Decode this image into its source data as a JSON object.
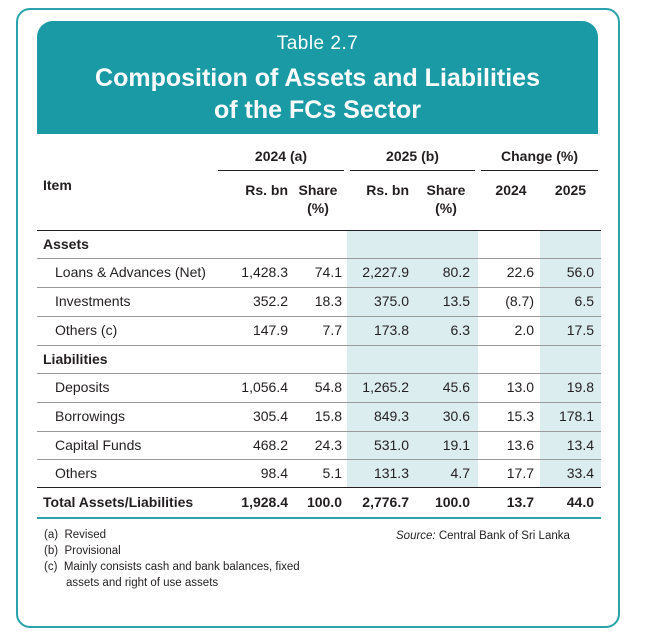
{
  "table": {
    "number": "Table 2.7",
    "title_line1": "Composition of Assets and Liabilities",
    "title_line2": "of the FCs Sector",
    "item_header": "Item",
    "group_headers": [
      "2024 (a)",
      "2025 (b)",
      "Change (%)"
    ],
    "sub_headers": {
      "rs_bn": "Rs. bn",
      "share_line1": "Share",
      "share_line2": "(%)",
      "change_2024": "2024",
      "change_2025": "2025"
    },
    "sections": [
      {
        "title": "Assets",
        "rows": [
          {
            "item": "Loans & Advances (Net)",
            "rs_2024": "1,428.3",
            "share_2024": "74.1",
            "rs_2025": "2,227.9",
            "share_2025": "80.2",
            "chg_2024": "22.6",
            "chg_2025": "56.0"
          },
          {
            "item": "Investments",
            "rs_2024": "352.2",
            "share_2024": "18.3",
            "rs_2025": "375.0",
            "share_2025": "13.5",
            "chg_2024": "(8.7)",
            "chg_2025": "6.5"
          },
          {
            "item": "Others (c)",
            "rs_2024": "147.9",
            "share_2024": "7.7",
            "rs_2025": "173.8",
            "share_2025": "6.3",
            "chg_2024": "2.0",
            "chg_2025": "17.5"
          }
        ]
      },
      {
        "title": "Liabilities",
        "rows": [
          {
            "item": "Deposits",
            "rs_2024": "1,056.4",
            "share_2024": "54.8",
            "rs_2025": "1,265.2",
            "share_2025": "45.6",
            "chg_2024": "13.0",
            "chg_2025": "19.8"
          },
          {
            "item": "Borrowings",
            "rs_2024": "305.4",
            "share_2024": "15.8",
            "rs_2025": "849.3",
            "share_2025": "30.6",
            "chg_2024": "15.3",
            "chg_2025": "178.1"
          },
          {
            "item": "Capital Funds",
            "rs_2024": "468.2",
            "share_2024": "24.3",
            "rs_2025": "531.0",
            "share_2025": "19.1",
            "chg_2024": "13.6",
            "chg_2025": "13.4"
          },
          {
            "item": "Others",
            "rs_2024": "98.4",
            "share_2024": "5.1",
            "rs_2025": "131.3",
            "share_2025": "4.7",
            "chg_2024": "17.7",
            "chg_2025": "33.4"
          }
        ]
      }
    ],
    "total": {
      "item": "Total Assets/Liabilities",
      "rs_2024": "1,928.4",
      "share_2024": "100.0",
      "rs_2025": "2,776.7",
      "share_2025": "100.0",
      "chg_2024": "13.7",
      "chg_2025": "44.0"
    }
  },
  "footnotes": {
    "a": {
      "marker": "(a)",
      "text": "Revised"
    },
    "b": {
      "marker": "(b)",
      "text": "Provisional"
    },
    "c": {
      "marker": "(c)",
      "text_line1": "Mainly consists cash and bank balances, fixed",
      "text_line2": "assets and right of use assets"
    }
  },
  "source": {
    "label": "Source:",
    "text": "Central Bank of  Sri Lanka"
  },
  "colors": {
    "accent": "#1a9aa4",
    "shade": "#dcedf0",
    "border": "#2aa3ad"
  }
}
